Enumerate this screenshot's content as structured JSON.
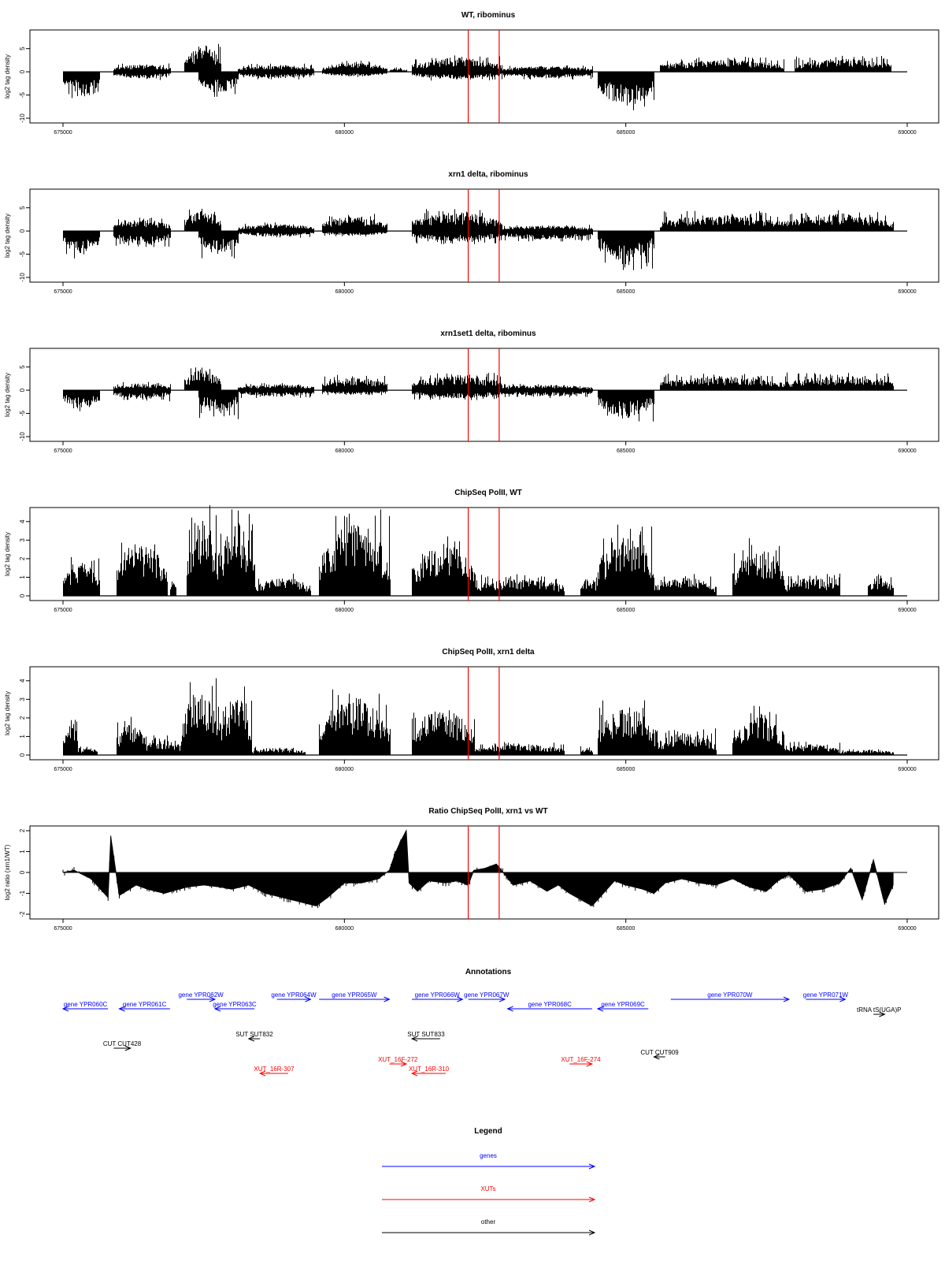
{
  "chart_data": [
    {
      "type": "bar",
      "title": "WT, ribominus",
      "ylabel": "log2 tag density",
      "xlim": [
        675000,
        690000
      ],
      "ylim": [
        -10,
        8
      ],
      "yticks": [
        -10,
        -5,
        0,
        5
      ],
      "xticks": [
        675000,
        680000,
        685000,
        690000
      ],
      "xtick_labels": [
        "675000",
        "680000",
        "685000",
        "690000"
      ],
      "highlight_x": [
        682200,
        682750
      ],
      "segments": [
        {
          "start": 675000,
          "end": 675650,
          "sign": -1,
          "amp": 5.2
        },
        {
          "start": 675900,
          "end": 676900,
          "sign": 1,
          "amp": 1.6
        },
        {
          "start": 675900,
          "end": 676900,
          "sign": -1,
          "amp": 1.5
        },
        {
          "start": 677150,
          "end": 677800,
          "sign": 1,
          "amp": 5.3
        },
        {
          "start": 677400,
          "end": 678100,
          "sign": -1,
          "amp": 4.6
        },
        {
          "start": 678100,
          "end": 679450,
          "sign": 1,
          "amp": 1.5
        },
        {
          "start": 678100,
          "end": 679450,
          "sign": -1,
          "amp": 1.4
        },
        {
          "start": 679600,
          "end": 680750,
          "sign": 1,
          "amp": 2.0
        },
        {
          "start": 679600,
          "end": 680750,
          "sign": -1,
          "amp": 1.0
        },
        {
          "start": 680800,
          "end": 681100,
          "sign": 1,
          "amp": 0.8
        },
        {
          "start": 681200,
          "end": 682800,
          "sign": 1,
          "amp": 3.0
        },
        {
          "start": 681200,
          "end": 682800,
          "sign": -1,
          "amp": 1.6
        },
        {
          "start": 682800,
          "end": 684400,
          "sign": 1,
          "amp": 1.2
        },
        {
          "start": 682800,
          "end": 684400,
          "sign": -1,
          "amp": 1.4
        },
        {
          "start": 684500,
          "end": 685500,
          "sign": -1,
          "amp": 7.5
        },
        {
          "start": 685600,
          "end": 687800,
          "sign": 1,
          "amp": 2.7
        },
        {
          "start": 688000,
          "end": 689700,
          "sign": 1,
          "amp": 2.9
        }
      ]
    },
    {
      "type": "bar",
      "title": "xrn1 delta, ribominus",
      "ylabel": "log2 tag density",
      "xlim": [
        675000,
        690000
      ],
      "ylim": [
        -10,
        8
      ],
      "yticks": [
        -10,
        -5,
        0,
        5
      ],
      "xticks": [
        675000,
        680000,
        685000,
        690000
      ],
      "xtick_labels": [
        "675000",
        "680000",
        "685000",
        "690000"
      ],
      "highlight_x": [
        682200,
        682750
      ],
      "segments": [
        {
          "start": 675000,
          "end": 675650,
          "sign": -1,
          "amp": 5.0
        },
        {
          "start": 675900,
          "end": 676900,
          "sign": 1,
          "amp": 2.4
        },
        {
          "start": 675900,
          "end": 676900,
          "sign": -1,
          "amp": 3.0
        },
        {
          "start": 677150,
          "end": 677800,
          "sign": 1,
          "amp": 4.6
        },
        {
          "start": 677400,
          "end": 678100,
          "sign": -1,
          "amp": 5.0
        },
        {
          "start": 678100,
          "end": 679450,
          "sign": 1,
          "amp": 1.6
        },
        {
          "start": 678100,
          "end": 679450,
          "sign": -1,
          "amp": 1.2
        },
        {
          "start": 679600,
          "end": 680750,
          "sign": 1,
          "amp": 3.2
        },
        {
          "start": 679600,
          "end": 680750,
          "sign": -1,
          "amp": 1.0
        },
        {
          "start": 681200,
          "end": 682800,
          "sign": 1,
          "amp": 4.0
        },
        {
          "start": 681200,
          "end": 682800,
          "sign": -1,
          "amp": 2.4
        },
        {
          "start": 682800,
          "end": 684400,
          "sign": 1,
          "amp": 1.2
        },
        {
          "start": 682800,
          "end": 684400,
          "sign": -1,
          "amp": 2.0
        },
        {
          "start": 684500,
          "end": 685500,
          "sign": -1,
          "amp": 7.2
        },
        {
          "start": 685600,
          "end": 687800,
          "sign": 1,
          "amp": 3.6
        },
        {
          "start": 687800,
          "end": 689750,
          "sign": 1,
          "amp": 3.8
        }
      ]
    },
    {
      "type": "bar",
      "title": "xrn1set1 delta, ribominus",
      "ylabel": "log2 tag density",
      "xlim": [
        675000,
        690000
      ],
      "ylim": [
        -10,
        8
      ],
      "yticks": [
        -10,
        -5,
        0,
        5
      ],
      "xticks": [
        675000,
        680000,
        685000,
        690000
      ],
      "xtick_labels": [
        "675000",
        "680000",
        "685000",
        "690000"
      ],
      "highlight_x": [
        682200,
        682750
      ],
      "segments": [
        {
          "start": 675000,
          "end": 675650,
          "sign": -1,
          "amp": 4.2
        },
        {
          "start": 675900,
          "end": 676900,
          "sign": 1,
          "amp": 1.5
        },
        {
          "start": 675900,
          "end": 676900,
          "sign": -1,
          "amp": 2.0
        },
        {
          "start": 677150,
          "end": 677800,
          "sign": 1,
          "amp": 4.5
        },
        {
          "start": 677400,
          "end": 678100,
          "sign": -1,
          "amp": 5.2
        },
        {
          "start": 678100,
          "end": 679450,
          "sign": 1,
          "amp": 1.3
        },
        {
          "start": 678100,
          "end": 679450,
          "sign": -1,
          "amp": 1.4
        },
        {
          "start": 679600,
          "end": 680750,
          "sign": 1,
          "amp": 2.8
        },
        {
          "start": 679600,
          "end": 680750,
          "sign": -1,
          "amp": 0.9
        },
        {
          "start": 681200,
          "end": 682800,
          "sign": 1,
          "amp": 3.3
        },
        {
          "start": 681200,
          "end": 682800,
          "sign": -1,
          "amp": 1.8
        },
        {
          "start": 682800,
          "end": 684400,
          "sign": 1,
          "amp": 1.2
        },
        {
          "start": 682800,
          "end": 684400,
          "sign": -1,
          "amp": 1.4
        },
        {
          "start": 684500,
          "end": 685500,
          "sign": -1,
          "amp": 6.0
        },
        {
          "start": 685600,
          "end": 687800,
          "sign": 1,
          "amp": 3.0
        },
        {
          "start": 687800,
          "end": 689750,
          "sign": 1,
          "amp": 3.2
        }
      ]
    },
    {
      "type": "bar",
      "title": "ChipSeq PolII, WT",
      "ylabel": "log2 tag density",
      "xlim": [
        675000,
        690000
      ],
      "ylim": [
        0,
        4.5
      ],
      "yticks": [
        0,
        1,
        2,
        3,
        4
      ],
      "xticks": [
        675000,
        680000,
        685000,
        690000
      ],
      "xtick_labels": [
        "675000",
        "680000",
        "685000",
        "690000"
      ],
      "highlight_x": [
        682200,
        682750
      ],
      "segments": [
        {
          "start": 675000,
          "end": 675650,
          "sign": 1,
          "amp": 1.8
        },
        {
          "start": 675950,
          "end": 676850,
          "sign": 1,
          "amp": 2.8
        },
        {
          "start": 676900,
          "end": 677000,
          "sign": 1,
          "amp": 1.0
        },
        {
          "start": 677200,
          "end": 677750,
          "sign": 1,
          "amp": 4.1
        },
        {
          "start": 677750,
          "end": 678400,
          "sign": 1,
          "amp": 4.0
        },
        {
          "start": 678400,
          "end": 679400,
          "sign": 1,
          "amp": 1.0
        },
        {
          "start": 679550,
          "end": 680800,
          "sign": 1,
          "amp": 3.9
        },
        {
          "start": 681200,
          "end": 682300,
          "sign": 1,
          "amp": 2.8
        },
        {
          "start": 682300,
          "end": 683900,
          "sign": 1,
          "amp": 1.0
        },
        {
          "start": 684200,
          "end": 684500,
          "sign": 1,
          "amp": 1.0
        },
        {
          "start": 684500,
          "end": 685500,
          "sign": 1,
          "amp": 3.3
        },
        {
          "start": 685500,
          "end": 686600,
          "sign": 1,
          "amp": 1.0
        },
        {
          "start": 686900,
          "end": 687800,
          "sign": 1,
          "amp": 2.6
        },
        {
          "start": 687800,
          "end": 688800,
          "sign": 1,
          "amp": 1.0
        },
        {
          "start": 689300,
          "end": 689750,
          "sign": 1,
          "amp": 1.0
        }
      ]
    },
    {
      "type": "bar",
      "title": "ChipSeq PolII, xrn1 delta",
      "ylabel": "log2 tag density",
      "xlim": [
        675000,
        690000
      ],
      "ylim": [
        0,
        4.5
      ],
      "yticks": [
        0,
        1,
        2,
        3,
        4
      ],
      "xticks": [
        675000,
        680000,
        685000,
        690000
      ],
      "xtick_labels": [
        "675000",
        "680000",
        "685000",
        "690000"
      ],
      "highlight_x": [
        682200,
        682750
      ],
      "segments": [
        {
          "start": 675000,
          "end": 675250,
          "sign": 1,
          "amp": 1.6
        },
        {
          "start": 675250,
          "end": 675600,
          "sign": 1,
          "amp": 0.4
        },
        {
          "start": 675950,
          "end": 676450,
          "sign": 1,
          "amp": 1.8
        },
        {
          "start": 676450,
          "end": 677100,
          "sign": 1,
          "amp": 0.9
        },
        {
          "start": 677100,
          "end": 677750,
          "sign": 1,
          "amp": 3.5
        },
        {
          "start": 677750,
          "end": 678350,
          "sign": 1,
          "amp": 3.2
        },
        {
          "start": 678350,
          "end": 679300,
          "sign": 1,
          "amp": 0.4
        },
        {
          "start": 679550,
          "end": 680800,
          "sign": 1,
          "amp": 3.1
        },
        {
          "start": 681200,
          "end": 682300,
          "sign": 1,
          "amp": 2.4
        },
        {
          "start": 682300,
          "end": 683900,
          "sign": 1,
          "amp": 0.6
        },
        {
          "start": 684200,
          "end": 684400,
          "sign": 1,
          "amp": 0.4
        },
        {
          "start": 684500,
          "end": 685500,
          "sign": 1,
          "amp": 2.6
        },
        {
          "start": 685500,
          "end": 686600,
          "sign": 1,
          "amp": 1.2
        },
        {
          "start": 686900,
          "end": 687800,
          "sign": 1,
          "amp": 2.3
        },
        {
          "start": 687800,
          "end": 688800,
          "sign": 1,
          "amp": 0.6
        },
        {
          "start": 688800,
          "end": 689750,
          "sign": 1,
          "amp": 0.3
        }
      ]
    },
    {
      "type": "area",
      "title": "Ratio ChipSeq PolII, xrn1 vs WT",
      "ylabel": "log2 ratio (xrn1/WT)",
      "xlim": [
        675000,
        690000
      ],
      "ylim": [
        -2,
        2
      ],
      "yticks": [
        -2,
        -1,
        0,
        1,
        2
      ],
      "xticks": [
        675000,
        680000,
        685000,
        690000
      ],
      "xtick_labels": [
        "675000",
        "680000",
        "685000",
        "690000"
      ],
      "highlight_x": [
        682200,
        682750
      ],
      "x": [
        675000,
        675200,
        675500,
        675700,
        675800,
        675850,
        676000,
        676300,
        676500,
        676800,
        677200,
        677500,
        677800,
        678000,
        678300,
        678600,
        678900,
        679200,
        679500,
        679700,
        680000,
        680300,
        680600,
        680800,
        680900,
        681000,
        681100,
        681150,
        681300,
        681500,
        681800,
        682000,
        682200,
        682300,
        682500,
        682700,
        682850,
        683000,
        683300,
        683600,
        683800,
        684000,
        684200,
        684400,
        684600,
        684800,
        685000,
        685300,
        685500,
        685700,
        686000,
        686300,
        686600,
        686900,
        687200,
        687500,
        687700,
        687900,
        688200,
        688500,
        688800,
        689000,
        689200,
        689400,
        689600,
        689750
      ],
      "values": [
        0.0,
        0.1,
        -0.3,
        -0.9,
        -1.2,
        1.7,
        -1.1,
        -0.6,
        -0.8,
        -1.0,
        -0.7,
        -0.6,
        -0.7,
        -0.8,
        -0.6,
        -1.0,
        -1.2,
        -1.4,
        -1.6,
        -1.2,
        -0.5,
        -0.5,
        -0.3,
        0.1,
        0.9,
        1.5,
        2.0,
        -0.5,
        -0.9,
        -0.4,
        -0.5,
        -0.4,
        -0.6,
        0.1,
        0.2,
        0.4,
        -0.1,
        -0.6,
        -0.4,
        -0.9,
        -0.6,
        -1.0,
        -1.3,
        -1.6,
        -1.0,
        -0.4,
        -0.6,
        -0.8,
        -1.0,
        -0.5,
        -0.3,
        -0.5,
        -0.6,
        -0.3,
        -0.7,
        -0.9,
        -0.4,
        -0.1,
        -0.9,
        -0.8,
        -0.5,
        0.2,
        -1.3,
        0.6,
        -1.5,
        -0.6
      ]
    }
  ],
  "annotations": {
    "title": "Annotations",
    "colors": {
      "gene": "#0000ff",
      "xut": "#ff0000",
      "other": "#000000"
    },
    "features": [
      {
        "label": "gene YPR060C",
        "kind": "gene",
        "start": 675000,
        "end": 675800,
        "strand": "-",
        "row": 2
      },
      {
        "label": "gene YPR061C",
        "kind": "gene",
        "start": 676000,
        "end": 676900,
        "strand": "-",
        "row": 2
      },
      {
        "label": "gene YPR062W",
        "kind": "gene",
        "start": 677200,
        "end": 677700,
        "strand": "+",
        "row": 1
      },
      {
        "label": "gene YPR063C",
        "kind": "gene",
        "start": 677700,
        "end": 678400,
        "strand": "-",
        "row": 2
      },
      {
        "label": "gene YPR064W",
        "kind": "gene",
        "start": 678800,
        "end": 679400,
        "strand": "+",
        "row": 1
      },
      {
        "label": "gene YPR065W",
        "kind": "gene",
        "start": 679550,
        "end": 680800,
        "strand": "+",
        "row": 1
      },
      {
        "label": "gene YPR066W",
        "kind": "gene",
        "start": 681200,
        "end": 682100,
        "strand": "+",
        "row": 1
      },
      {
        "label": "gene YPR067W",
        "kind": "gene",
        "start": 682200,
        "end": 682850,
        "strand": "+",
        "row": 1
      },
      {
        "label": "gene YPR068C",
        "kind": "gene",
        "start": 682900,
        "end": 684400,
        "strand": "-",
        "row": 2
      },
      {
        "label": "gene YPR069C",
        "kind": "gene",
        "start": 684500,
        "end": 685400,
        "strand": "-",
        "row": 2
      },
      {
        "label": "gene YPR070W",
        "kind": "gene",
        "start": 685800,
        "end": 687900,
        "strand": "+",
        "row": 1
      },
      {
        "label": "gene YPR071W",
        "kind": "gene",
        "start": 688200,
        "end": 688900,
        "strand": "+",
        "row": 1
      },
      {
        "label": "tRNA tS(UGA)P",
        "kind": "other",
        "start": 689400,
        "end": 689600,
        "strand": "+",
        "row": 3
      },
      {
        "label": "CUT CUT428",
        "kind": "other",
        "start": 675900,
        "end": 676200,
        "strand": "+",
        "row": 5
      },
      {
        "label": "SUT SUT832",
        "kind": "other",
        "start": 678300,
        "end": 678500,
        "strand": "-",
        "row": 4
      },
      {
        "label": "SUT SUT833",
        "kind": "other",
        "start": 681200,
        "end": 681700,
        "strand": "-",
        "row": 4
      },
      {
        "label": "CUT CUT909",
        "kind": "other",
        "start": 685500,
        "end": 685700,
        "strand": "-",
        "row": 6
      },
      {
        "label": "XUT_16F-272",
        "kind": "xut",
        "start": 680800,
        "end": 681100,
        "strand": "+",
        "row": 7
      },
      {
        "label": "XUT_16R-307",
        "kind": "xut",
        "start": 678500,
        "end": 679000,
        "strand": "-",
        "row": 8
      },
      {
        "label": "XUT_16R-310",
        "kind": "xut",
        "start": 681200,
        "end": 681800,
        "strand": "-",
        "row": 8
      },
      {
        "label": "XUT_16F-274",
        "kind": "xut",
        "start": 684000,
        "end": 684400,
        "strand": "+",
        "row": 7
      }
    ]
  },
  "legend": {
    "title": "Legend",
    "entries": [
      {
        "label": "genes",
        "color": "#0000ff"
      },
      {
        "label": "XUTs",
        "color": "#ff0000"
      },
      {
        "label": "other",
        "color": "#000000"
      }
    ]
  }
}
